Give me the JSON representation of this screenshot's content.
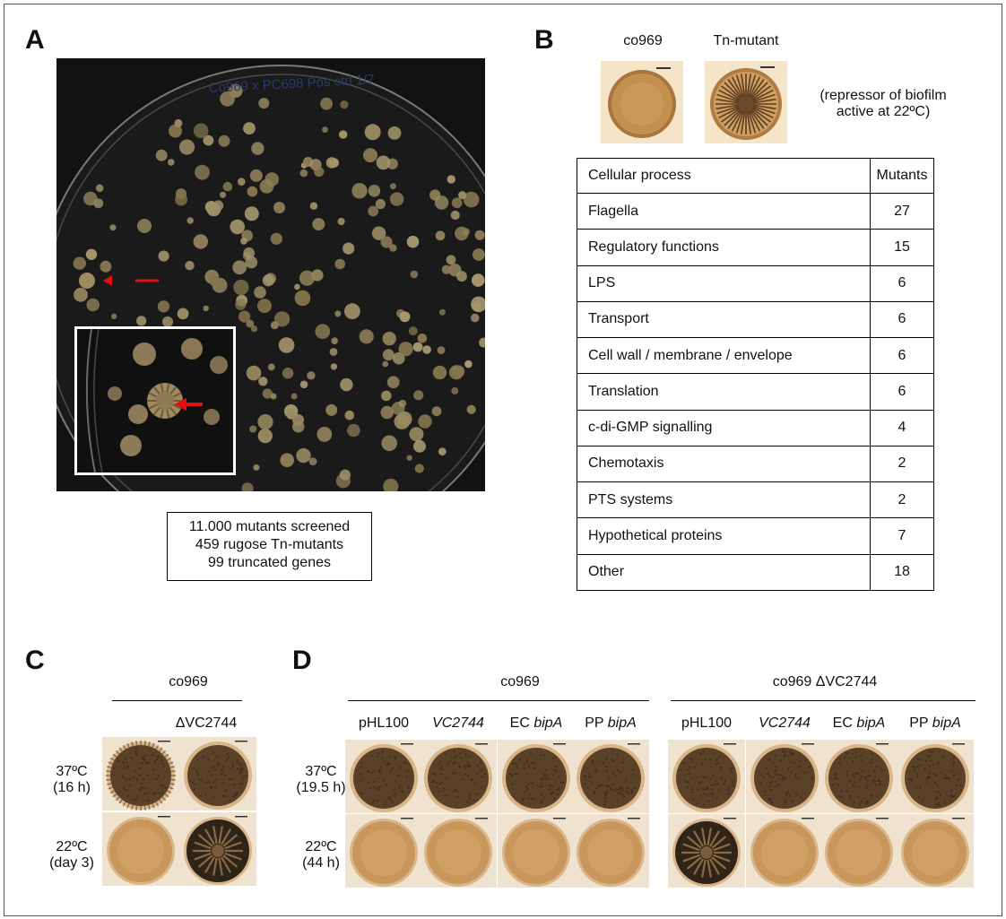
{
  "panels": {
    "a": "A",
    "b": "B",
    "c": "C",
    "d": "D"
  },
  "panel_a": {
    "plate_writing": "Co969 x PC698  Pos ctrl 1/7",
    "summary": [
      "11.000 mutants screened",
      "459 rugose Tn-mutants",
      "99 truncated genes"
    ]
  },
  "panel_b": {
    "labels": [
      "co969",
      "Tn-mutant"
    ],
    "note": [
      "(repressor of biofilm",
      "active at 22ºC)"
    ],
    "table": {
      "headers": [
        "Cellular process",
        "Mutants"
      ],
      "rows": [
        [
          "Flagella",
          "27"
        ],
        [
          "Regulatory functions",
          "15"
        ],
        [
          "LPS",
          "6"
        ],
        [
          "Transport",
          "6"
        ],
        [
          "Cell wall / membrane / envelope",
          "6"
        ],
        [
          "Translation",
          "6"
        ],
        [
          "c-di-GMP signalling",
          "4"
        ],
        [
          "Chemotaxis",
          "2"
        ],
        [
          "PTS systems",
          "2"
        ],
        [
          "Hypothetical proteins",
          "7"
        ],
        [
          "Other",
          "18"
        ]
      ]
    }
  },
  "panel_c": {
    "strain": "co969",
    "mutant": "ΔVC2744",
    "rows": [
      {
        "temp": "37ºC",
        "time": "(16 h)"
      },
      {
        "temp": "22ºC",
        "time": "(day 3)"
      }
    ]
  },
  "panel_d": {
    "groups": [
      "co969",
      "co969 ΔVC2744"
    ],
    "columns": [
      {
        "prefix": "pHL100",
        "italic": ""
      },
      {
        "prefix": "",
        "italic": "VC2744"
      },
      {
        "prefix": "EC ",
        "italic": "bipA"
      },
      {
        "prefix": "PP ",
        "italic": "bipA"
      },
      {
        "prefix": "pHL100",
        "italic": ""
      },
      {
        "prefix": "",
        "italic": "VC2744"
      },
      {
        "prefix": "EC ",
        "italic": "bipA"
      },
      {
        "prefix": "PP ",
        "italic": "bipA"
      }
    ],
    "rows": [
      {
        "temp": "37ºC",
        "time": "(19.5 h)"
      },
      {
        "temp": "22ºC",
        "time": "(44 h)"
      }
    ]
  },
  "colors": {
    "arrow": "#e01010",
    "agar_background": "#121212",
    "colony_smooth": "#c9975c",
    "colony_rugose": "#5a4128",
    "colony_wrinkled_dark": "#2f2418",
    "photo_background": "#efe3cf"
  }
}
